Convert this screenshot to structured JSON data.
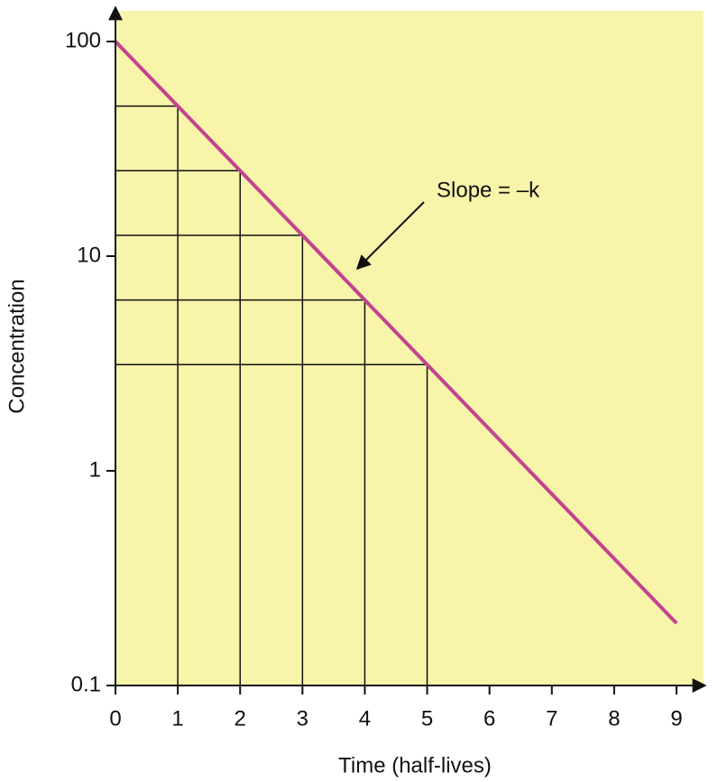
{
  "chart_data": {
    "type": "line",
    "x_label": "Time (half-lives)",
    "y_label": "Concentration",
    "annotation": "Slope = –k",
    "x": [
      0,
      1,
      2,
      3,
      4,
      5,
      6,
      7,
      8,
      9
    ],
    "series": [
      {
        "name": "Concentration",
        "color": "#c2448f",
        "values": [
          100,
          50,
          25,
          12.5,
          6.25,
          3.125,
          1.56,
          0.78,
          0.39,
          0.195
        ]
      }
    ],
    "xlim": [
      0,
      9
    ],
    "ylim": [
      0.1,
      100
    ],
    "yscale": "log",
    "xticks": [
      0,
      1,
      2,
      3,
      4,
      5,
      6,
      7,
      8,
      9
    ],
    "yticks": [
      0.1,
      1,
      10,
      100
    ],
    "background": "#f8f4aa"
  }
}
